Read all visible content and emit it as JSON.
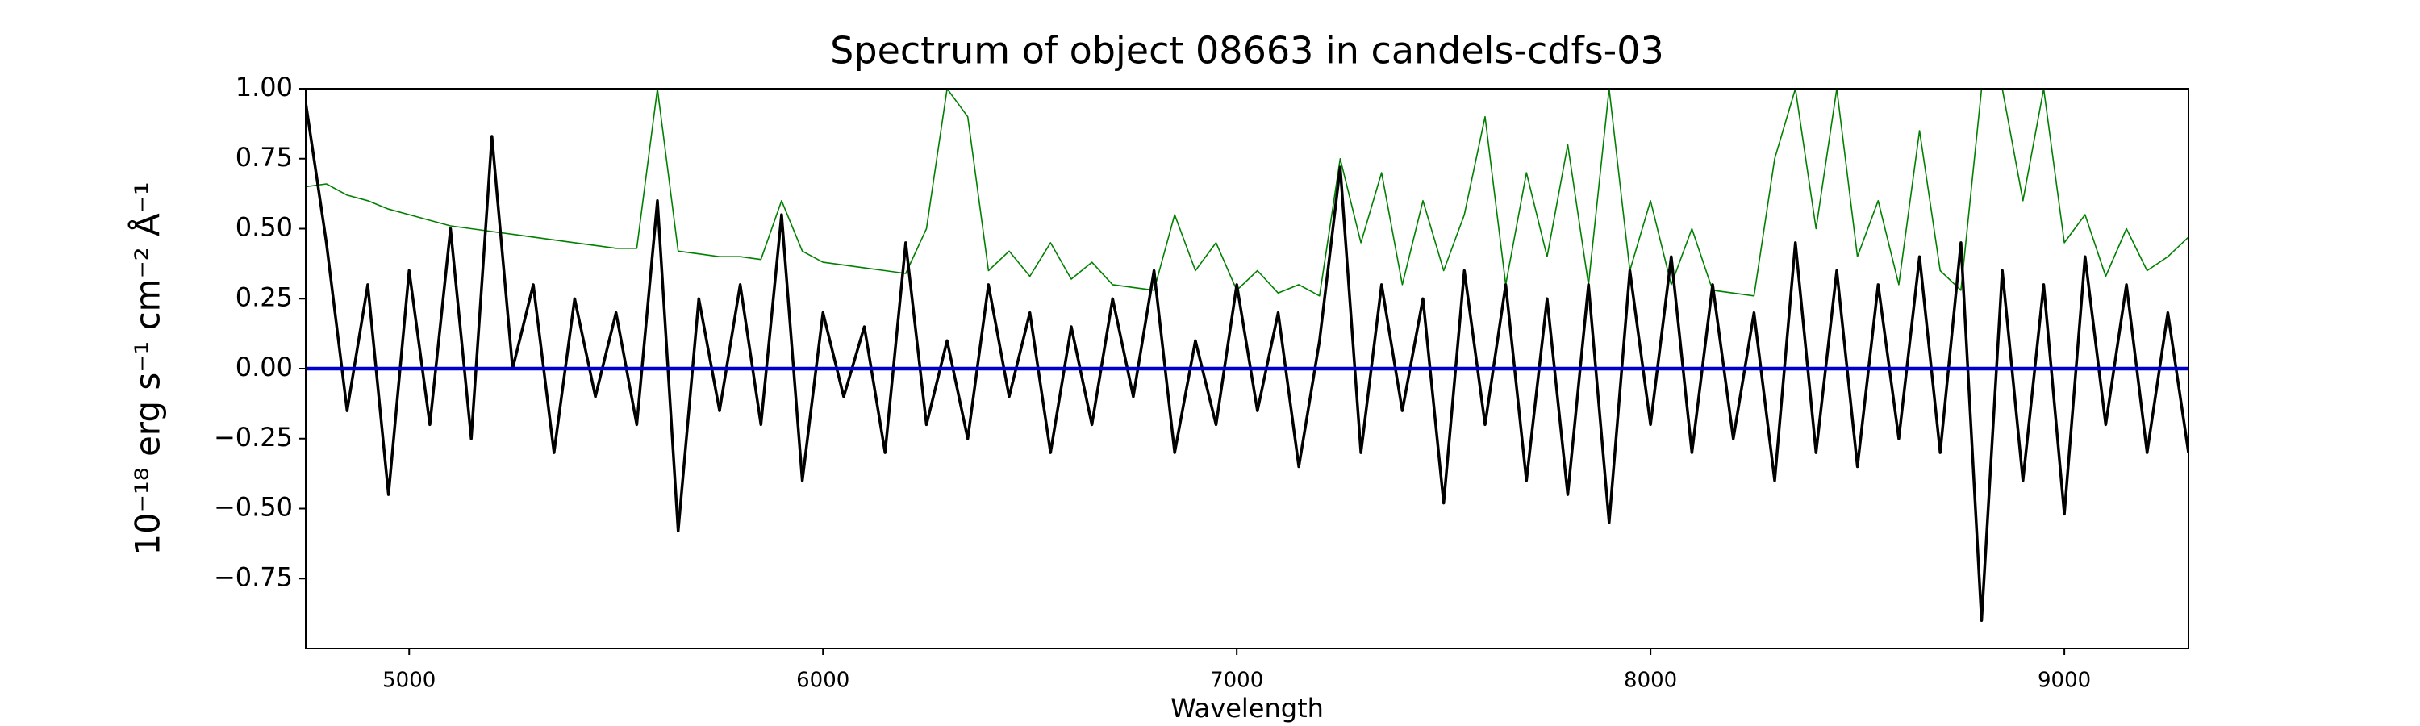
{
  "chart_data": {
    "type": "line",
    "title": "Spectrum of object 08663 in candels-cdfs-03",
    "xlabel": "Wavelength",
    "ylabel": "10⁻¹⁸ erg s⁻¹ cm⁻² Å⁻¹",
    "xlim": [
      4750,
      9300
    ],
    "ylim": [
      -1,
      1
    ],
    "xticks": [
      5000,
      6000,
      7000,
      8000,
      9000
    ],
    "yticks": [
      {
        "value": -0.75,
        "label": "−0.75"
      },
      {
        "value": -0.5,
        "label": "−0.50"
      },
      {
        "value": -0.25,
        "label": "−0.25"
      },
      {
        "value": 0,
        "label": "0.00"
      },
      {
        "value": 0.25,
        "label": "0.25"
      },
      {
        "value": 0.5,
        "label": "0.50"
      },
      {
        "value": 0.75,
        "label": "0.75"
      },
      {
        "value": 1,
        "label": "1.00"
      }
    ],
    "grid": false,
    "x": [
      4750,
      4800,
      4850,
      4900,
      4950,
      5000,
      5050,
      5100,
      5150,
      5200,
      5250,
      5300,
      5350,
      5400,
      5450,
      5500,
      5550,
      5600,
      5650,
      5700,
      5750,
      5800,
      5850,
      5900,
      5950,
      6000,
      6050,
      6100,
      6150,
      6200,
      6250,
      6300,
      6350,
      6400,
      6450,
      6500,
      6550,
      6600,
      6650,
      6700,
      6750,
      6800,
      6850,
      6900,
      6950,
      7000,
      7050,
      7100,
      7150,
      7200,
      7250,
      7300,
      7350,
      7400,
      7450,
      7500,
      7550,
      7600,
      7650,
      7700,
      7750,
      7800,
      7850,
      7900,
      7950,
      8000,
      8050,
      8100,
      8150,
      8200,
      8250,
      8300,
      8350,
      8400,
      8450,
      8500,
      8550,
      8600,
      8650,
      8700,
      8750,
      8800,
      8850,
      8900,
      8950,
      9000,
      9050,
      9100,
      9150,
      9200,
      9250,
      9300
    ],
    "series": [
      {
        "color": "#008000",
        "width": 1.6,
        "values": [
          0.65,
          0.66,
          0.62,
          0.6,
          0.57,
          0.55,
          0.53,
          0.51,
          0.5,
          0.49,
          0.48,
          0.47,
          0.46,
          0.45,
          0.44,
          0.43,
          0.43,
          1.0,
          0.42,
          0.41,
          0.4,
          0.4,
          0.39,
          0.6,
          0.42,
          0.38,
          0.37,
          0.36,
          0.35,
          0.34,
          0.5,
          1.0,
          0.9,
          0.35,
          0.42,
          0.33,
          0.45,
          0.32,
          0.38,
          0.3,
          0.29,
          0.28,
          0.55,
          0.35,
          0.45,
          0.28,
          0.35,
          0.27,
          0.3,
          0.26,
          0.75,
          0.45,
          0.7,
          0.3,
          0.6,
          0.35,
          0.55,
          0.9,
          0.3,
          0.7,
          0.4,
          0.8,
          0.3,
          1.0,
          0.35,
          0.6,
          0.3,
          0.5,
          0.28,
          0.27,
          0.26,
          0.75,
          1.0,
          0.5,
          1.0,
          0.4,
          0.6,
          0.3,
          0.85,
          0.35,
          0.28,
          1.0,
          1.0,
          0.6,
          1.0,
          0.45,
          0.55,
          0.33,
          0.5,
          0.35,
          0.4,
          0.47
        ]
      },
      {
        "color": "#000000",
        "width": 3.5,
        "values": [
          0.95,
          0.45,
          -0.15,
          0.3,
          -0.45,
          0.35,
          -0.2,
          0.5,
          -0.25,
          0.83,
          0.0,
          0.3,
          -0.3,
          0.25,
          -0.1,
          0.2,
          -0.2,
          0.6,
          -0.58,
          0.25,
          -0.15,
          0.3,
          -0.2,
          0.55,
          -0.4,
          0.2,
          -0.1,
          0.15,
          -0.3,
          0.45,
          -0.2,
          0.1,
          -0.25,
          0.3,
          -0.1,
          0.2,
          -0.3,
          0.15,
          -0.2,
          0.25,
          -0.1,
          0.35,
          -0.3,
          0.1,
          -0.2,
          0.3,
          -0.15,
          0.2,
          -0.35,
          0.1,
          0.72,
          -0.3,
          0.3,
          -0.15,
          0.25,
          -0.48,
          0.35,
          -0.2,
          0.3,
          -0.4,
          0.25,
          -0.45,
          0.3,
          -0.55,
          0.35,
          -0.2,
          0.4,
          -0.3,
          0.3,
          -0.25,
          0.2,
          -0.4,
          0.45,
          -0.3,
          0.35,
          -0.35,
          0.3,
          -0.25,
          0.4,
          -0.3,
          0.45,
          -0.9,
          0.35,
          -0.4,
          0.3,
          -0.52,
          0.4,
          -0.2,
          0.3,
          -0.3,
          0.2,
          -0.3
        ]
      },
      {
        "color": "#0000cc",
        "width": 4.5,
        "x": [
          4750,
          9300
        ],
        "values": [
          0,
          0
        ]
      }
    ]
  }
}
